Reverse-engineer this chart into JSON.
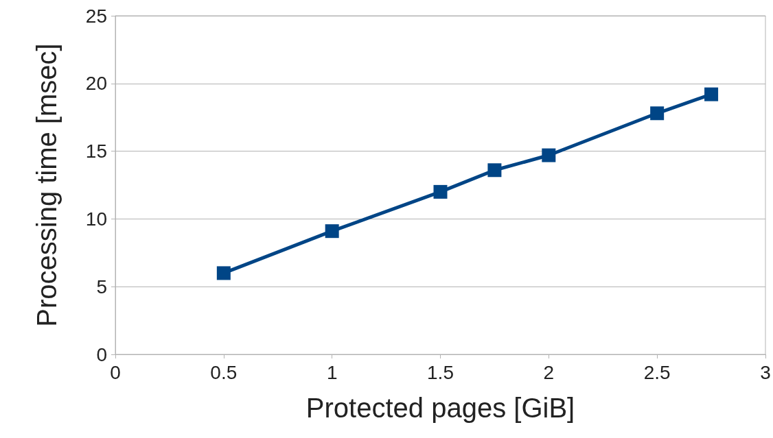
{
  "chart_data": {
    "type": "line",
    "xlabel": "Protected pages [GiB]",
    "ylabel": "Processing time [msec]",
    "x": [
      0.5,
      1,
      1.5,
      1.75,
      2,
      2.5,
      2.75
    ],
    "series": [
      {
        "color": "#004586",
        "values": [
          6.0,
          9.1,
          12.0,
          13.6,
          14.7,
          17.8,
          19.2
        ]
      }
    ],
    "xlim": [
      0,
      3
    ],
    "xticks": [
      0,
      0.5,
      1,
      1.5,
      2,
      2.5,
      3
    ],
    "ylim": [
      0,
      25
    ],
    "yticks": [
      0,
      5,
      10,
      15,
      20,
      25
    ],
    "grid": "y",
    "marker": "square",
    "line_style": "solid"
  }
}
